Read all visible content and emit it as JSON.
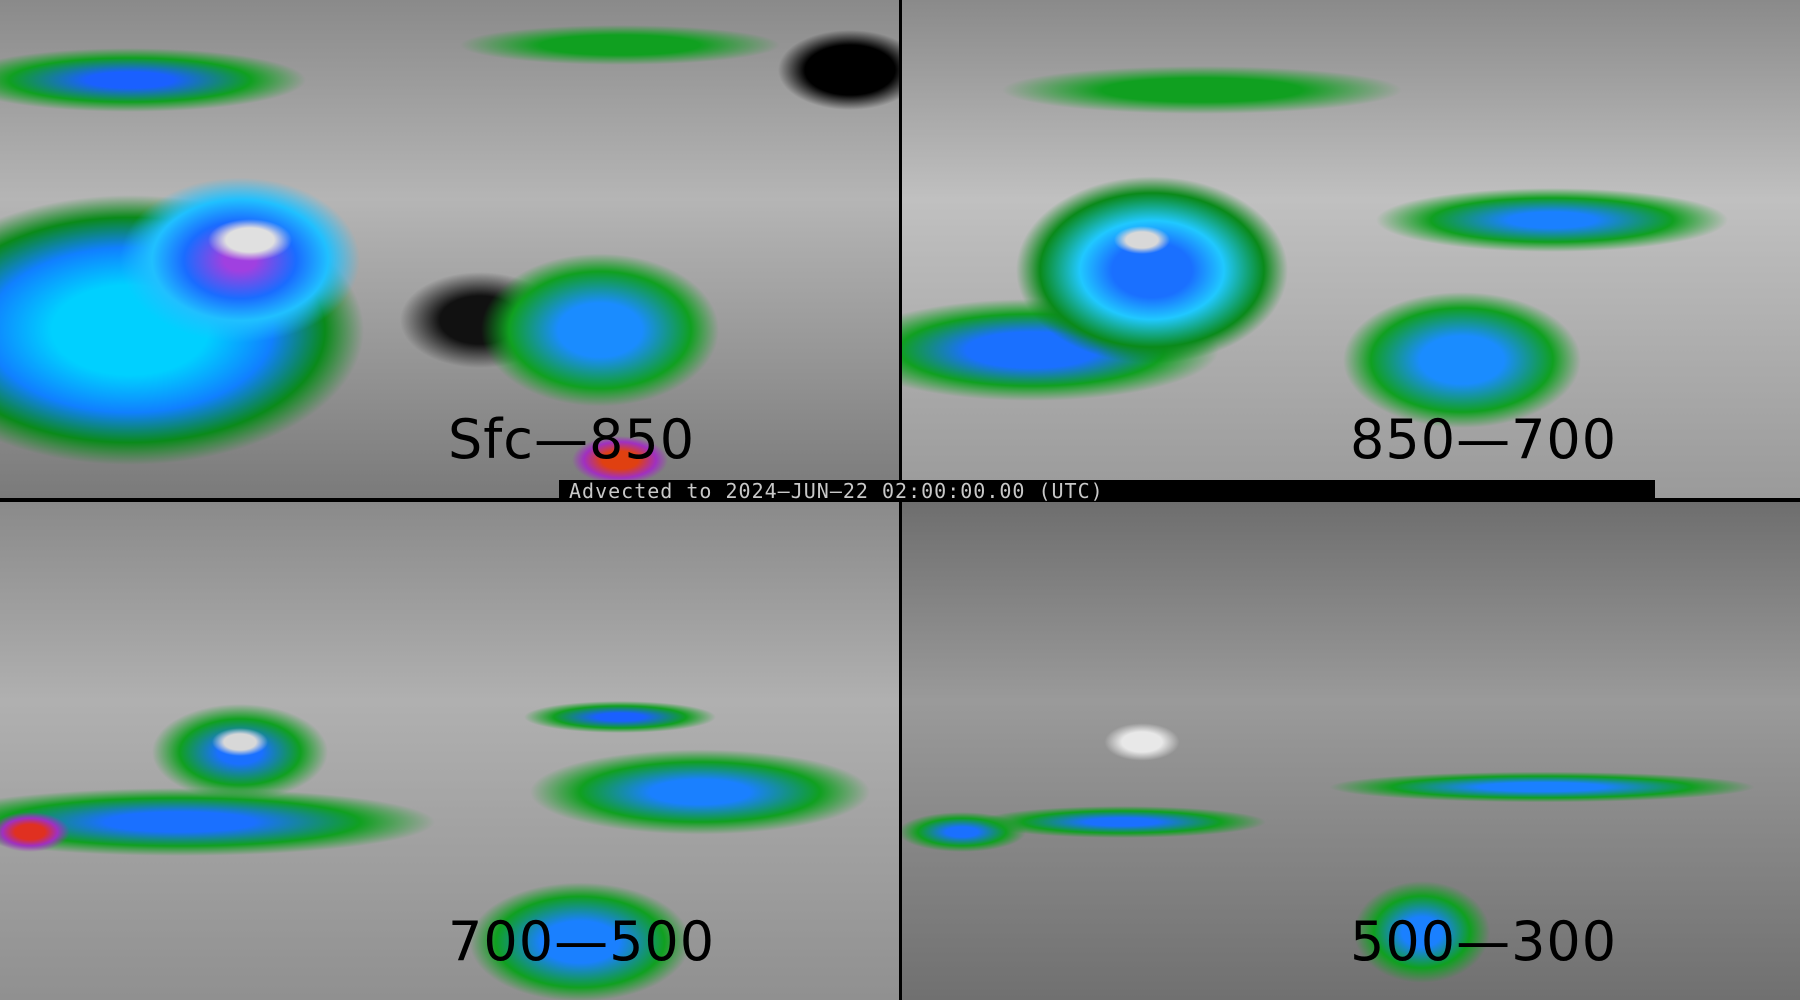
{
  "panels": [
    {
      "label": "Sfc—850"
    },
    {
      "label": "850—700"
    },
    {
      "label": "700—500"
    },
    {
      "label": "500—300"
    }
  ],
  "banner": "Advected to 2024—JUN—22 02:00:00.00 (UTC)",
  "colors": {
    "green": "#10a020",
    "blue": "#1a70ff",
    "cyan": "#20c0ff",
    "purple": "#a040e0",
    "red": "#e04010",
    "background_gray": "#9a9a9a"
  }
}
